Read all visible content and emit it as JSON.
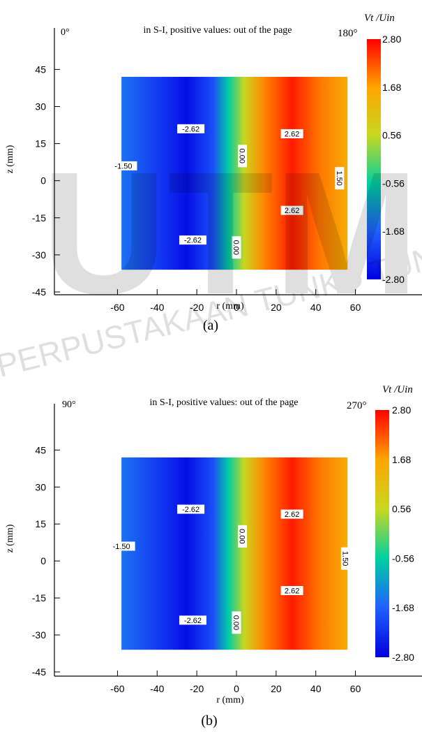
{
  "watermark": {
    "large_text": "UTM",
    "arc_text": "PERPUSTAKAAN TUNKU TUN AMINAH"
  },
  "chart_data": [
    {
      "type": "heatmap",
      "panel_caption": "(a)",
      "title": "in S-I, positive values: out of the page",
      "left_angle": "0°",
      "right_angle": "180°",
      "colorbar": {
        "title": "Vt /Uin",
        "ticks": [
          "2.80",
          "1.68",
          "0.56",
          "-0.56",
          "-1.68",
          "-2.80"
        ],
        "values": [
          2.8,
          1.68,
          0.56,
          -0.56,
          -1.68,
          -2.8
        ],
        "colors": [
          "#ff0000",
          "#ffa500",
          "#c8d820",
          "#00d0a0",
          "#2060ff",
          "#0000e0"
        ]
      },
      "xlabel": "r (mm)",
      "ylabel": "z (mm)",
      "xlim": [
        -70,
        70
      ],
      "ylim": [
        -45,
        55
      ],
      "xticks": [
        -60,
        -40,
        -20,
        0,
        20,
        40,
        60
      ],
      "yticks": [
        45,
        30,
        15,
        0,
        -15,
        -30,
        -45
      ],
      "field_extent": {
        "x": [
          -58,
          56
        ],
        "y": [
          -36,
          42
        ]
      },
      "color_profile": [
        {
          "x": -58,
          "v": -1.5
        },
        {
          "x": -40,
          "v": -2.1
        },
        {
          "x": -25,
          "v": -2.62
        },
        {
          "x": -12,
          "v": -1.9
        },
        {
          "x": -4,
          "v": -0.6
        },
        {
          "x": 4,
          "v": 0.6
        },
        {
          "x": 14,
          "v": 1.9
        },
        {
          "x": 28,
          "v": 2.62
        },
        {
          "x": 42,
          "v": 2.0
        },
        {
          "x": 56,
          "v": 1.5
        }
      ],
      "contour_labels": [
        {
          "text": "-2.62",
          "x": -23,
          "y": 21,
          "rotate": false
        },
        {
          "text": "-1.50",
          "x": -57,
          "y": 6,
          "rotate": false
        },
        {
          "text": "-2.62",
          "x": -22,
          "y": -24,
          "rotate": false
        },
        {
          "text": "0.00",
          "x": 3,
          "y": 10,
          "rotate": true
        },
        {
          "text": "0.00",
          "x": 0,
          "y": -27,
          "rotate": true
        },
        {
          "text": "2.62",
          "x": 28,
          "y": 19,
          "rotate": false
        },
        {
          "text": "2.62",
          "x": 28,
          "y": -12,
          "rotate": false
        },
        {
          "text": "1.50",
          "x": 52,
          "y": 1,
          "rotate": true
        }
      ]
    },
    {
      "type": "heatmap",
      "panel_caption": "(b)",
      "title": "in S-I, positive values: out of the page",
      "left_angle": "90°",
      "right_angle": "270°",
      "colorbar": {
        "title": "Vt /Uin",
        "ticks": [
          "2.80",
          "1.68",
          "0.56",
          "-0.56",
          "-1.68",
          "-2.80"
        ],
        "values": [
          2.8,
          1.68,
          0.56,
          -0.56,
          -1.68,
          -2.8
        ],
        "colors": [
          "#ff0000",
          "#ffa500",
          "#c8d820",
          "#00d0a0",
          "#2060ff",
          "#0000e0"
        ]
      },
      "xlabel": "r (mm)",
      "ylabel": "z (mm)",
      "xlim": [
        -70,
        70
      ],
      "ylim": [
        -45,
        55
      ],
      "xticks": [
        -60,
        -40,
        -20,
        0,
        20,
        40,
        60
      ],
      "yticks": [
        45,
        30,
        15,
        0,
        -15,
        -30,
        -45
      ],
      "field_extent": {
        "x": [
          -58,
          56
        ],
        "y": [
          -36,
          42
        ]
      },
      "color_profile": [
        {
          "x": -58,
          "v": -1.5
        },
        {
          "x": -40,
          "v": -2.1
        },
        {
          "x": -25,
          "v": -2.62
        },
        {
          "x": -12,
          "v": -1.9
        },
        {
          "x": -4,
          "v": -0.6
        },
        {
          "x": 4,
          "v": 0.6
        },
        {
          "x": 14,
          "v": 1.9
        },
        {
          "x": 28,
          "v": 2.62
        },
        {
          "x": 42,
          "v": 2.0
        },
        {
          "x": 56,
          "v": 1.5
        }
      ],
      "contour_labels": [
        {
          "text": "-2.62",
          "x": -23,
          "y": 21,
          "rotate": false
        },
        {
          "text": "-1.50",
          "x": -58,
          "y": 6,
          "rotate": false
        },
        {
          "text": "-2.62",
          "x": -22,
          "y": -24,
          "rotate": false
        },
        {
          "text": "0.00",
          "x": 3,
          "y": 10,
          "rotate": true
        },
        {
          "text": "0.00",
          "x": 0,
          "y": -25,
          "rotate": true
        },
        {
          "text": "2.62",
          "x": 28,
          "y": 19,
          "rotate": false
        },
        {
          "text": "2.62",
          "x": 28,
          "y": -12,
          "rotate": false
        },
        {
          "text": "1.50",
          "x": 55,
          "y": 1,
          "rotate": true
        }
      ]
    }
  ]
}
